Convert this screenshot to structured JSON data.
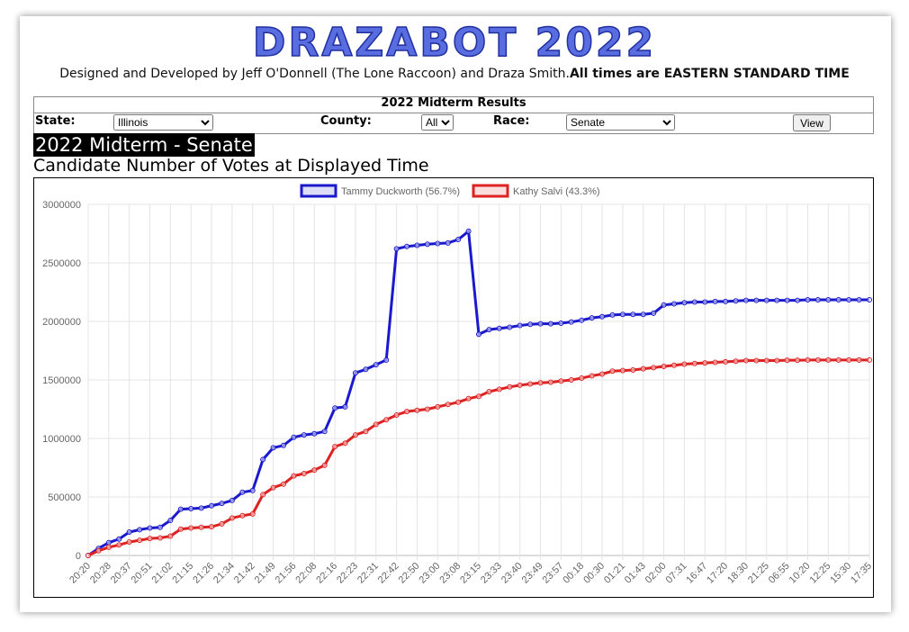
{
  "header": {
    "title": "DRAZABOT 2022",
    "credits": "Designed and Developed by Jeff O'Donnell (The Lone Raccoon) and Draza Smith.",
    "timezone_note": "All times are EASTERN STANDARD TIME"
  },
  "form": {
    "title": "2022 Midterm Results",
    "state_label": "State:",
    "state": "Illinois",
    "county_label": "County:",
    "county": "All",
    "race_label": "Race:",
    "race": "Senate",
    "button": "View"
  },
  "heading": "2022 Midterm - Senate",
  "subheading": "Candidate Number of Votes at Displayed Time",
  "chart_data": {
    "type": "line",
    "categories": [
      "20:20",
      null,
      "20:28",
      null,
      "20:37",
      null,
      "20:51",
      null,
      "21:02",
      null,
      "21:15",
      null,
      "21:26",
      null,
      "21:34",
      null,
      "21:42",
      null,
      "21:49",
      null,
      "21:56",
      null,
      "22:08",
      null,
      "22:16",
      null,
      "22:23",
      null,
      "22:31",
      null,
      "22:42",
      null,
      "22:50",
      null,
      "23:00",
      null,
      "23:08",
      null,
      "23:15",
      null,
      "23:33",
      null,
      "23:40",
      null,
      "23:49",
      null,
      "23:57",
      null,
      "00:18",
      null,
      "00:30",
      null,
      "01:21",
      null,
      "01:43",
      null,
      "02:00",
      null,
      "07:31",
      null,
      "16:47",
      null,
      "17:20",
      null,
      "18:30",
      null,
      "21:25",
      null,
      "06:55",
      null,
      "10:20",
      null,
      "12:25",
      null,
      "15:30",
      null,
      "17:35"
    ],
    "series": [
      {
        "name": "Tammy Duckworth (56.7%)",
        "color": "#1a1acc",
        "values": [
          0,
          60000,
          110000,
          140000,
          200000,
          220000,
          235000,
          240000,
          300000,
          395000,
          400000,
          405000,
          425000,
          445000,
          470000,
          540000,
          555000,
          820000,
          920000,
          940000,
          1010000,
          1030000,
          1040000,
          1060000,
          1260000,
          1270000,
          1560000,
          1590000,
          1630000,
          1670000,
          2620000,
          2640000,
          2650000,
          2660000,
          2665000,
          2670000,
          2700000,
          2770000,
          1890000,
          1930000,
          1940000,
          1950000,
          1965000,
          1975000,
          1980000,
          1980000,
          1985000,
          1995000,
          2010000,
          2030000,
          2040000,
          2055000,
          2060000,
          2060000,
          2060000,
          2070000,
          2140000,
          2150000,
          2160000,
          2165000,
          2165000,
          2170000,
          2170000,
          2175000,
          2180000,
          2180000,
          2180000,
          2180000,
          2180000,
          2180000,
          2185000,
          2185000,
          2185000,
          2185000,
          2185000,
          2185000,
          2185000
        ]
      },
      {
        "name": "Kathy Salvi (43.3%)",
        "color": "#dd2222",
        "values": [
          0,
          40000,
          70000,
          90000,
          115000,
          130000,
          145000,
          150000,
          165000,
          225000,
          235000,
          240000,
          245000,
          270000,
          320000,
          340000,
          355000,
          520000,
          580000,
          610000,
          680000,
          700000,
          730000,
          770000,
          930000,
          960000,
          1030000,
          1060000,
          1120000,
          1160000,
          1200000,
          1230000,
          1240000,
          1250000,
          1270000,
          1290000,
          1310000,
          1340000,
          1360000,
          1400000,
          1420000,
          1440000,
          1455000,
          1465000,
          1475000,
          1480000,
          1490000,
          1500000,
          1515000,
          1535000,
          1550000,
          1575000,
          1580000,
          1585000,
          1595000,
          1605000,
          1615000,
          1625000,
          1635000,
          1640000,
          1645000,
          1650000,
          1655000,
          1660000,
          1665000,
          1665000,
          1665000,
          1665000,
          1668000,
          1668000,
          1670000,
          1670000,
          1670000,
          1670000,
          1670000,
          1670000,
          1670000
        ]
      }
    ],
    "ylim": [
      0,
      3000000
    ],
    "yticks": [
      0,
      500000,
      1000000,
      1500000,
      2000000,
      2500000,
      3000000
    ],
    "grid": true,
    "legend": "top"
  }
}
